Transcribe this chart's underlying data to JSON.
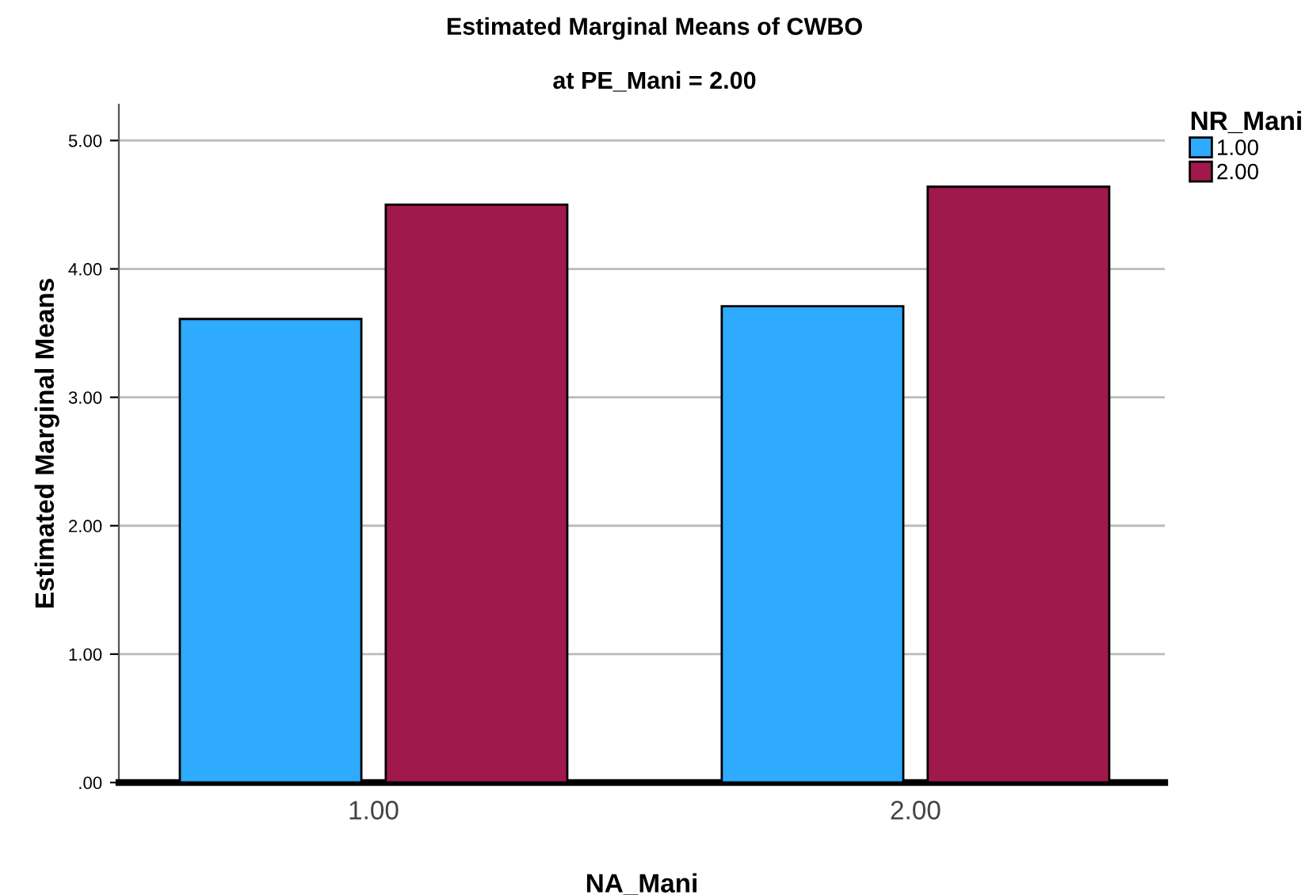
{
  "chart_data": {
    "type": "bar",
    "title": "Estimated Marginal Means of CWBO",
    "subtitle": "at PE_Mani = 2.00",
    "xlabel": "NA_Mani",
    "ylabel": "Estimated Marginal Means",
    "legend_title": "NR_Mani",
    "categories": [
      "1.00",
      "2.00"
    ],
    "series": [
      {
        "name": "1.00",
        "color": "#2eaaff",
        "values": [
          3.61,
          3.71
        ]
      },
      {
        "name": "2.00",
        "color": "#a0184c",
        "values": [
          4.5,
          4.64
        ]
      }
    ],
    "ylim": [
      0,
      5.28
    ],
    "yticks": [
      {
        "value": 0,
        "label": ".00"
      },
      {
        "value": 1,
        "label": "1.00"
      },
      {
        "value": 2,
        "label": "2.00"
      },
      {
        "value": 3,
        "label": "3.00"
      },
      {
        "value": 4,
        "label": "4.00"
      },
      {
        "value": 5,
        "label": "5.00"
      }
    ],
    "grid": "y",
    "legend": "top right"
  }
}
